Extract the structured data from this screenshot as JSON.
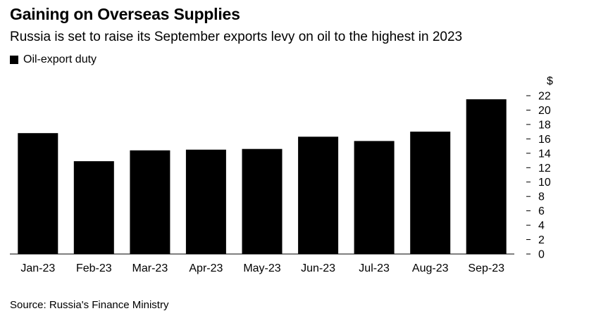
{
  "title": "Gaining on Overseas Supplies",
  "subtitle": "Russia is set to raise its September exports levy on oil to the highest in 2023",
  "legend": {
    "label": "Oil-export duty",
    "color": "#000000"
  },
  "source": "Source: Russia's Finance Ministry",
  "chart_data": {
    "type": "bar",
    "title": "Gaining on Overseas Supplies",
    "xlabel": "",
    "ylabel": "$",
    "y_axis_position": "right",
    "ylim": [
      0,
      22
    ],
    "yticks": [
      0,
      2,
      4,
      6,
      8,
      10,
      12,
      14,
      16,
      18,
      20,
      22
    ],
    "categories": [
      "Jan-23",
      "Feb-23",
      "Mar-23",
      "Apr-23",
      "May-23",
      "Jun-23",
      "Jul-23",
      "Aug-23",
      "Sep-23"
    ],
    "series": [
      {
        "name": "Oil-export duty",
        "color": "#000000",
        "values": [
          16.8,
          12.9,
          14.4,
          14.5,
          14.6,
          16.3,
          15.7,
          17.0,
          21.5
        ]
      }
    ]
  }
}
